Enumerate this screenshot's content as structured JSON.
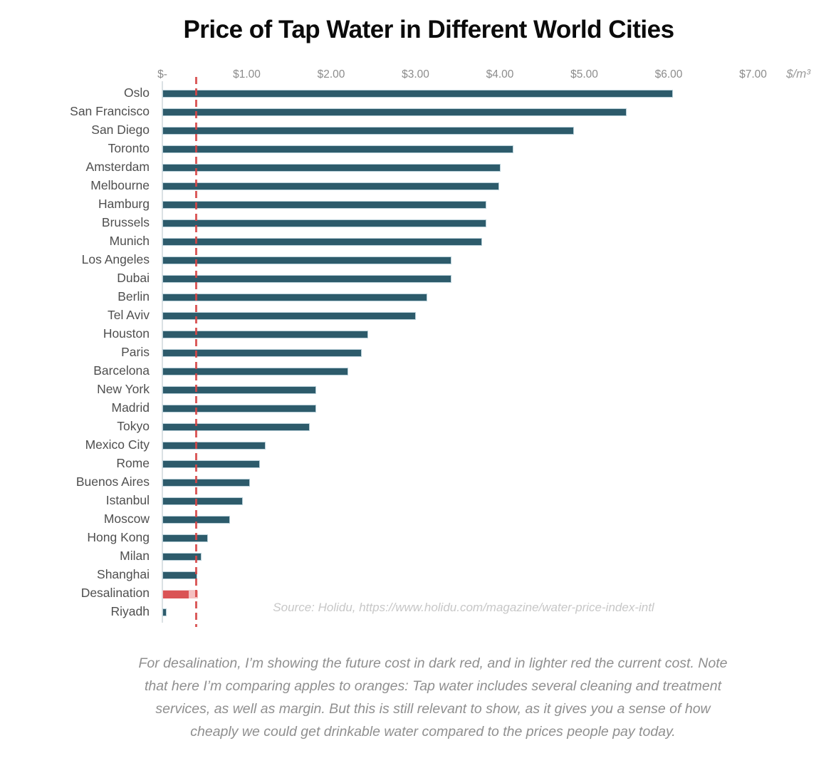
{
  "chart_data": {
    "type": "bar",
    "orientation": "horizontal",
    "title": "Price of Tap Water in Different World Cities",
    "unit_label": "$/m³",
    "xlim": [
      0,
      7.5
    ],
    "grid": false,
    "legend": "none",
    "ticks": [
      {
        "label": "$-",
        "value": 0
      },
      {
        "label": "$1.00",
        "value": 1
      },
      {
        "label": "$2.00",
        "value": 2
      },
      {
        "label": "$3.00",
        "value": 3
      },
      {
        "label": "$4.00",
        "value": 4
      },
      {
        "label": "$5.00",
        "value": 5
      },
      {
        "label": "$6.00",
        "value": 6
      },
      {
        "label": "$7.00",
        "value": 7
      }
    ],
    "rows": [
      {
        "city": "Oslo",
        "value": 6.05
      },
      {
        "city": "San Francisco",
        "value": 5.5
      },
      {
        "city": "San Diego",
        "value": 4.88
      },
      {
        "city": "Toronto",
        "value": 4.16
      },
      {
        "city": "Amsterdam",
        "value": 4.01
      },
      {
        "city": "Melbourne",
        "value": 3.99
      },
      {
        "city": "Hamburg",
        "value": 3.84
      },
      {
        "city": "Brussels",
        "value": 3.84
      },
      {
        "city": "Munich",
        "value": 3.79
      },
      {
        "city": "Los Angeles",
        "value": 3.43
      },
      {
        "city": "Dubai",
        "value": 3.43
      },
      {
        "city": "Berlin",
        "value": 3.14
      },
      {
        "city": "Tel Aviv",
        "value": 3.0
      },
      {
        "city": "Houston",
        "value": 2.44
      },
      {
        "city": "Paris",
        "value": 2.36
      },
      {
        "city": "Barcelona",
        "value": 2.2
      },
      {
        "city": "New York",
        "value": 1.82
      },
      {
        "city": "Madrid",
        "value": 1.82
      },
      {
        "city": "Tokyo",
        "value": 1.75
      },
      {
        "city": "Mexico City",
        "value": 1.22
      },
      {
        "city": "Rome",
        "value": 1.16
      },
      {
        "city": "Buenos Aires",
        "value": 1.04
      },
      {
        "city": "Istanbul",
        "value": 0.95
      },
      {
        "city": "Moscow",
        "value": 0.8
      },
      {
        "city": "Hong Kong",
        "value": 0.54
      },
      {
        "city": "Milan",
        "value": 0.46
      },
      {
        "city": "Shanghai",
        "value": 0.41
      },
      {
        "city": "Desalination",
        "value": 0.41,
        "segments": [
          {
            "name": "future cost",
            "from": 0,
            "to": 0.3,
            "color": "#da5355"
          },
          {
            "name": "current cost",
            "from": 0.3,
            "to": 0.41,
            "color": "#f5bfc0"
          }
        ]
      },
      {
        "city": "Riyadh",
        "value": 0.05
      }
    ],
    "reference_line": {
      "value": 0.4,
      "style": "dashed",
      "color": "#d64545"
    },
    "colors": {
      "bar": "#2d5b6b",
      "desalination_future": "#da5355",
      "desalination_current": "#f5bfc0"
    },
    "source": "Source: Holidu, https://www.holidu.com/magazine/water-price-index-intl"
  },
  "caption": "For desalination, I’m showing the future cost in dark red, and in lighter red the current cost. Note that here I’m comparing apples to oranges: Tap water includes several cleaning and treatment services, as well as margin. But this is still relevant to show, as it gives you a sense of how cheaply we could get drinkable water compared to the prices people pay today."
}
